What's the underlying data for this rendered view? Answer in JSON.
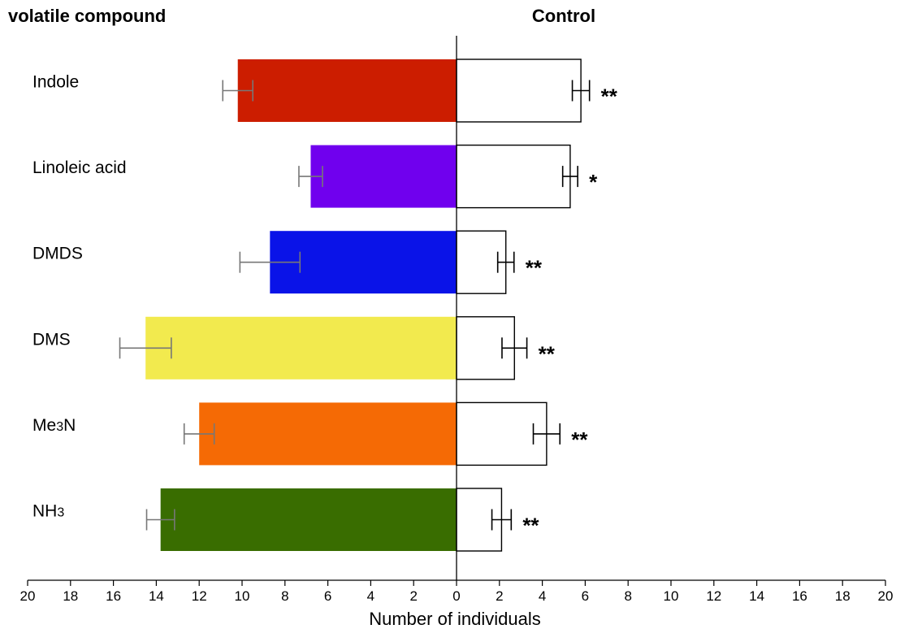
{
  "chart_data": {
    "type": "bar",
    "orientation": "horizontal-diverging",
    "left_header": "volatile compound",
    "right_header": "Control",
    "xlabel": "Number of individuals",
    "xlim": [
      -20,
      20
    ],
    "x_ticks": [
      -20,
      -18,
      -16,
      -14,
      -12,
      -10,
      -8,
      -6,
      -4,
      -2,
      0,
      2,
      4,
      6,
      8,
      10,
      12,
      14,
      16,
      18,
      20
    ],
    "x_tick_labels": [
      "20",
      "18",
      "16",
      "14",
      "12",
      "10",
      "8",
      "6",
      "4",
      "2",
      "0",
      "2",
      "4",
      "6",
      "8",
      "10",
      "12",
      "14",
      "16",
      "18",
      "20"
    ],
    "grid": false,
    "categories": [
      {
        "base": "Indole",
        "sub": ""
      },
      {
        "base": "Linoleic acid",
        "sub": ""
      },
      {
        "base": "DMDS",
        "sub": ""
      },
      {
        "base": "DMS",
        "sub": ""
      },
      {
        "base": "Me",
        "sub": "3",
        "tail": "N"
      },
      {
        "base": "NH",
        "sub": "3",
        "tail": ""
      }
    ],
    "series": [
      {
        "values": [
          10.2,
          6.8,
          8.7,
          14.5,
          12.0,
          13.8
        ],
        "errors": [
          0.7,
          0.55,
          1.4,
          1.2,
          0.7,
          0.65
        ],
        "colors": [
          "#cc1d00",
          "#7000ee",
          "#0a13e8",
          "#f2ea4e",
          "#f56a05",
          "#396d00"
        ]
      },
      {
        "values": [
          5.8,
          5.3,
          2.3,
          2.7,
          4.2,
          2.1
        ],
        "errors": [
          0.4,
          0.35,
          0.38,
          0.58,
          0.62,
          0.45
        ],
        "colors": [
          "#ffffff",
          "#ffffff",
          "#ffffff",
          "#ffffff",
          "#ffffff",
          "#ffffff"
        ]
      }
    ],
    "significance": [
      "**",
      "*",
      "**",
      "**",
      "**",
      "**"
    ]
  }
}
